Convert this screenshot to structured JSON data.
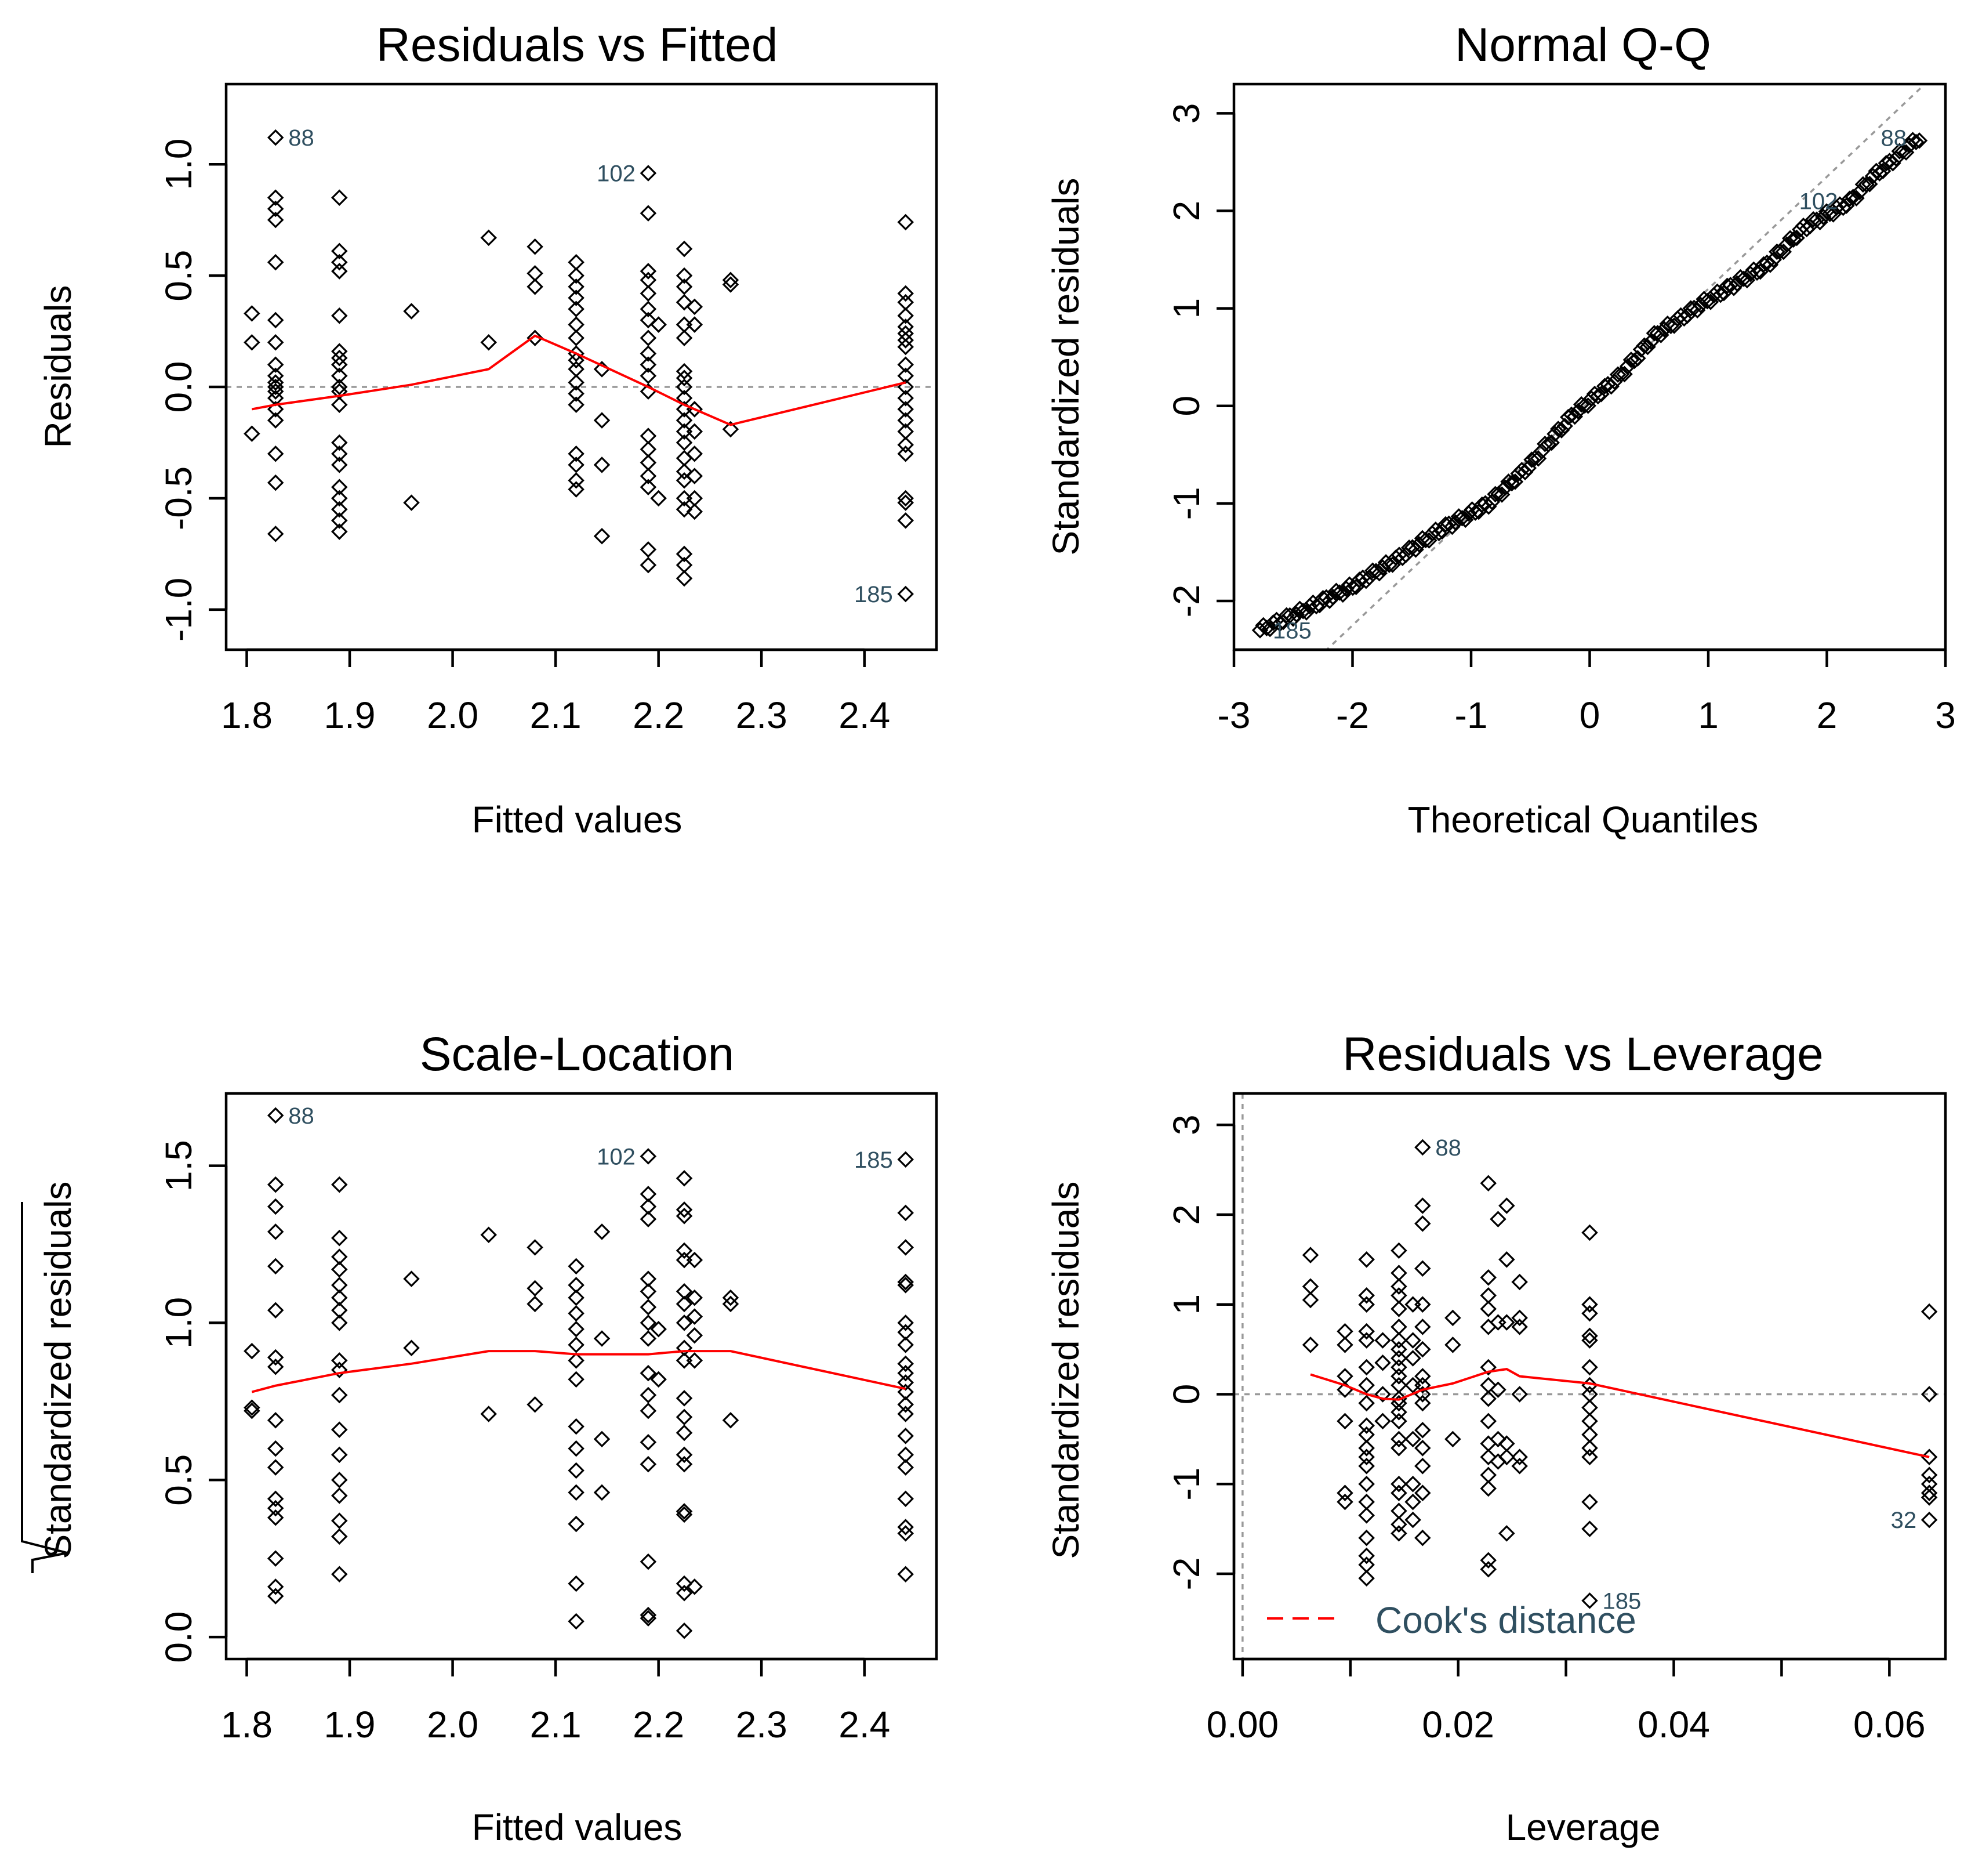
{
  "chart_data": [
    {
      "id": "rvf",
      "type": "scatter",
      "title": "Residuals vs Fitted",
      "xlabel": "Fitted values",
      "ylabel": "Residuals",
      "xlim": [
        1.78,
        2.47
      ],
      "ylim": [
        -1.18,
        1.36
      ],
      "xticks": [
        1.8,
        1.9,
        2.0,
        2.1,
        2.2,
        2.3,
        2.4
      ],
      "xtick_labels": [
        "1.8",
        "1.9",
        "2.0",
        "2.1",
        "2.2",
        "2.3",
        "2.4"
      ],
      "yticks": [
        -1.0,
        -0.5,
        0.0,
        0.5,
        1.0
      ],
      "ytick_labels": [
        "-1.0",
        "-0.5",
        "0.0",
        "0.5",
        "1.0"
      ],
      "reference_line": {
        "kind": "h",
        "value": 0
      },
      "points": [
        {
          "x": 1.805,
          "ys": [
            0.33,
            0.2,
            -0.21
          ]
        },
        {
          "x": 1.828,
          "ys": [
            1.12,
            0.85,
            0.8,
            0.75,
            0.56,
            0.3,
            0.2,
            0.1,
            0.05,
            0.02,
            0.0,
            -0.02,
            -0.05,
            -0.1,
            -0.15,
            -0.3,
            -0.43,
            -0.66
          ]
        },
        {
          "x": 1.89,
          "ys": [
            0.85,
            0.61,
            0.56,
            0.52,
            0.32,
            0.16,
            0.13,
            0.1,
            0.05,
            0.0,
            -0.02,
            -0.08,
            -0.25,
            -0.3,
            -0.35,
            -0.45,
            -0.5,
            -0.55,
            -0.6,
            -0.65
          ]
        },
        {
          "x": 1.96,
          "ys": [
            0.34,
            -0.52
          ]
        },
        {
          "x": 2.035,
          "ys": [
            0.67,
            0.2
          ]
        },
        {
          "x": 2.08,
          "ys": [
            0.63,
            0.51,
            0.45,
            0.22
          ]
        },
        {
          "x": 2.12,
          "ys": [
            0.56,
            0.5,
            0.45,
            0.4,
            0.35,
            0.28,
            0.22,
            0.15,
            0.12,
            0.08,
            0.02,
            -0.03,
            -0.08,
            -0.3,
            -0.35,
            -0.42,
            -0.46
          ]
        },
        {
          "x": 2.145,
          "ys": [
            0.08,
            -0.15,
            -0.35,
            -0.67
          ]
        },
        {
          "x": 2.19,
          "ys": [
            0.96,
            0.78,
            0.52,
            0.48,
            0.42,
            0.35,
            0.3,
            0.22,
            0.15,
            0.1,
            0.05,
            -0.02,
            -0.22,
            -0.28,
            -0.34,
            -0.4,
            -0.45,
            -0.73,
            -0.8
          ]
        },
        {
          "x": 2.2,
          "ys": [
            0.28,
            -0.5
          ]
        },
        {
          "x": 2.225,
          "ys": [
            0.62,
            0.5,
            0.45,
            0.38,
            0.28,
            0.22,
            0.07,
            0.04,
            0.0,
            -0.05,
            -0.1,
            -0.15,
            -0.2,
            -0.25,
            -0.32,
            -0.38,
            -0.42,
            -0.5,
            -0.55,
            -0.75,
            -0.8,
            -0.86
          ]
        },
        {
          "x": 2.235,
          "ys": [
            0.36,
            0.28,
            -0.1,
            -0.2,
            -0.3,
            -0.4,
            -0.5,
            -0.56
          ]
        },
        {
          "x": 2.27,
          "ys": [
            0.48,
            0.46,
            -0.19
          ]
        },
        {
          "x": 2.44,
          "ys": [
            0.74,
            0.42,
            0.38,
            0.32,
            0.27,
            0.24,
            0.21,
            0.18,
            0.1,
            0.05,
            0.0,
            -0.05,
            -0.1,
            -0.15,
            -0.2,
            -0.26,
            -0.3,
            -0.5,
            -0.52,
            -0.6,
            -0.93
          ]
        }
      ],
      "smooth_line": {
        "x": [
          1.805,
          1.828,
          1.89,
          1.96,
          2.035,
          2.08,
          2.12,
          2.19,
          2.225,
          2.27,
          2.44
        ],
        "y": [
          -0.1,
          -0.08,
          -0.04,
          0.01,
          0.08,
          0.23,
          0.15,
          0.0,
          -0.08,
          -0.17,
          0.02
        ]
      },
      "point_labels": [
        {
          "text": "88",
          "x": 1.828,
          "y": 1.12,
          "side": "right"
        },
        {
          "text": "102",
          "x": 2.19,
          "y": 0.96,
          "side": "left"
        },
        {
          "text": "185",
          "x": 2.44,
          "y": -0.93,
          "side": "left"
        }
      ]
    },
    {
      "id": "qq",
      "type": "scatter",
      "title": "Normal Q-Q",
      "xlabel": "Theoretical Quantiles",
      "ylabel": "Standardized residuals",
      "xlim": [
        -3.0,
        3.0
      ],
      "ylim": [
        -2.5,
        3.3
      ],
      "xticks": [
        -3,
        -2,
        -1,
        0,
        1,
        2,
        3
      ],
      "xtick_labels": [
        "-3",
        "-2",
        "-1",
        "0",
        "1",
        "2",
        "3"
      ],
      "yticks": [
        -2,
        -1,
        0,
        1,
        2,
        3
      ],
      "ytick_labels": [
        "-2",
        "-1",
        "0",
        "1",
        "2",
        "3"
      ],
      "reference_line": {
        "kind": "abline",
        "intercept": 0.05,
        "slope": 1.15
      },
      "qq": {
        "x_start": -2.78,
        "x_end": 2.78,
        "n": 200,
        "anchors": [
          [
            -2.78,
            -2.3
          ],
          [
            -2.45,
            -2.12
          ],
          [
            -2.0,
            -1.85
          ],
          [
            -1.6,
            -1.55
          ],
          [
            -1.3,
            -1.3
          ],
          [
            -0.85,
            -1.0
          ],
          [
            -0.5,
            -0.6
          ],
          [
            -0.15,
            -0.1
          ],
          [
            0.25,
            0.3
          ],
          [
            0.55,
            0.72
          ],
          [
            0.95,
            1.05
          ],
          [
            1.5,
            1.45
          ],
          [
            1.8,
            1.82
          ],
          [
            2.2,
            2.1
          ],
          [
            2.4,
            2.36
          ],
          [
            2.78,
            2.75
          ]
        ]
      },
      "point_labels": [
        {
          "text": "88",
          "x": 2.78,
          "y": 2.75,
          "side": "left"
        },
        {
          "text": "102",
          "x": 2.2,
          "y": 2.1,
          "side": "left"
        },
        {
          "text": "185",
          "x": -2.78,
          "y": -2.3,
          "side": "right"
        }
      ]
    },
    {
      "id": "sl",
      "type": "scatter",
      "title": "Scale-Location",
      "xlabel": "Fitted values",
      "ylabel": "Standardized residuals",
      "xlim": [
        1.78,
        2.47
      ],
      "ylim": [
        -0.07,
        1.73
      ],
      "xticks": [
        1.8,
        1.9,
        2.0,
        2.1,
        2.2,
        2.3,
        2.4
      ],
      "xtick_labels": [
        "1.8",
        "1.9",
        "2.0",
        "2.1",
        "2.2",
        "2.3",
        "2.4"
      ],
      "yticks": [
        0.0,
        0.5,
        1.0,
        1.5
      ],
      "ytick_labels": [
        "0.0",
        "0.5",
        "1.0",
        "1.5"
      ],
      "points": [
        {
          "x": 1.805,
          "ys": [
            0.91,
            0.73,
            0.72
          ]
        },
        {
          "x": 1.828,
          "ys": [
            1.66,
            1.44,
            1.37,
            1.29,
            1.18,
            1.04,
            0.89,
            0.86,
            0.69,
            0.6,
            0.54,
            0.44,
            0.41,
            0.38,
            0.25,
            0.16,
            0.13
          ]
        },
        {
          "x": 1.89,
          "ys": [
            1.44,
            1.27,
            1.21,
            1.17,
            1.12,
            1.08,
            1.04,
            1.0,
            0.88,
            0.85,
            0.77,
            0.66,
            0.58,
            0.5,
            0.45,
            0.37,
            0.32,
            0.2
          ]
        },
        {
          "x": 1.96,
          "ys": [
            1.14,
            0.92
          ]
        },
        {
          "x": 2.035,
          "ys": [
            1.28,
            0.71
          ]
        },
        {
          "x": 2.08,
          "ys": [
            1.24,
            1.11,
            1.06,
            0.74
          ]
        },
        {
          "x": 2.12,
          "ys": [
            1.18,
            1.12,
            1.08,
            1.03,
            0.98,
            0.93,
            0.88,
            0.82,
            0.67,
            0.6,
            0.53,
            0.46,
            0.36,
            0.17,
            0.05
          ]
        },
        {
          "x": 2.145,
          "ys": [
            1.29,
            0.95,
            0.63,
            0.46
          ]
        },
        {
          "x": 2.19,
          "ys": [
            1.53,
            1.41,
            1.37,
            1.33,
            1.14,
            1.1,
            1.05,
            1.0,
            0.95,
            0.84,
            0.77,
            0.72,
            0.62,
            0.55,
            0.24,
            0.07,
            0.06
          ]
        },
        {
          "x": 2.2,
          "ys": [
            0.82,
            0.98
          ]
        },
        {
          "x": 2.225,
          "ys": [
            1.46,
            1.36,
            1.34,
            1.23,
            1.2,
            1.1,
            1.06,
            1.0,
            0.92,
            0.88,
            0.76,
            0.7,
            0.65,
            0.58,
            0.55,
            0.4,
            0.39,
            0.17,
            0.14,
            0.02
          ]
        },
        {
          "x": 2.235,
          "ys": [
            1.2,
            1.08,
            1.02,
            0.96,
            0.88,
            0.16
          ]
        },
        {
          "x": 2.27,
          "ys": [
            1.08,
            1.06,
            0.69
          ]
        },
        {
          "x": 2.44,
          "ys": [
            1.52,
            1.35,
            1.24,
            1.13,
            1.12,
            1.0,
            0.97,
            0.93,
            0.87,
            0.84,
            0.81,
            0.78,
            0.74,
            0.71,
            0.64,
            0.58,
            0.54,
            0.44,
            0.35,
            0.33,
            0.2
          ]
        }
      ],
      "smooth_line": {
        "x": [
          1.805,
          1.828,
          1.89,
          1.96,
          2.035,
          2.08,
          2.12,
          2.19,
          2.225,
          2.27,
          2.44
        ],
        "y": [
          0.78,
          0.8,
          0.84,
          0.87,
          0.91,
          0.91,
          0.9,
          0.9,
          0.91,
          0.91,
          0.79
        ]
      },
      "point_labels": [
        {
          "text": "88",
          "x": 1.828,
          "y": 1.66,
          "side": "right"
        },
        {
          "text": "102",
          "x": 2.19,
          "y": 1.53,
          "side": "left"
        },
        {
          "text": "185",
          "x": 2.44,
          "y": 1.52,
          "side": "left"
        }
      ]
    },
    {
      "id": "rvl",
      "type": "scatter",
      "title": "Residuals vs Leverage",
      "xlabel": "Leverage",
      "ylabel": "Standardized residuals",
      "xlim": [
        -0.0008,
        0.0652
      ],
      "ylim": [
        -2.95,
        3.35
      ],
      "xticks": [
        0.0,
        0.01,
        0.02,
        0.03,
        0.04,
        0.05,
        0.06
      ],
      "xtick_labels": [
        "0.00",
        "",
        "0.02",
        "",
        "0.04",
        "",
        "0.06"
      ],
      "yticks": [
        -2,
        -1,
        0,
        1,
        2,
        3
      ],
      "ytick_labels": [
        "-2",
        "-1",
        "0",
        "1",
        "2",
        "3"
      ],
      "reference_line": {
        "kind": "h",
        "value": 0
      },
      "reference_line_v": 0,
      "points": [
        {
          "x": 0.0063,
          "ys": [
            1.55,
            1.2,
            1.05,
            0.55
          ]
        },
        {
          "x": 0.0095,
          "ys": [
            0.7,
            0.55,
            0.2,
            0.05,
            -0.3,
            -1.1,
            -1.2
          ]
        },
        {
          "x": 0.0115,
          "ys": [
            1.5,
            1.1,
            1.0,
            0.7,
            0.6,
            0.3,
            0.1,
            -0.1,
            -0.35,
            -0.45,
            -0.6,
            -0.7,
            -0.8,
            -1.0,
            -1.2,
            -1.35,
            -1.6,
            -1.8,
            -1.9,
            -2.05
          ]
        },
        {
          "x": 0.013,
          "ys": [
            0.6,
            0.35,
            0.0,
            -0.3
          ]
        },
        {
          "x": 0.0145,
          "ys": [
            1.6,
            1.35,
            1.2,
            1.1,
            0.95,
            0.75,
            0.6,
            0.5,
            0.4,
            0.3,
            0.2,
            0.1,
            -0.05,
            -0.1,
            -0.2,
            -0.3,
            -0.5,
            -0.6,
            -1.0,
            -1.1,
            -1.3,
            -1.45,
            -1.55
          ]
        },
        {
          "x": 0.0158,
          "ys": [
            1.0,
            0.6,
            0.4,
            0.1,
            -0.5,
            -1.0,
            -1.2,
            -1.4
          ]
        },
        {
          "x": 0.0167,
          "ys": [
            2.75,
            2.1,
            1.9,
            1.4,
            1.0,
            0.75,
            0.5,
            0.2,
            0.1,
            0.0,
            -0.1,
            -0.4,
            -0.6,
            -0.8,
            -1.1,
            -1.6
          ]
        },
        {
          "x": 0.0195,
          "ys": [
            0.85,
            0.55,
            -0.5
          ]
        },
        {
          "x": 0.0228,
          "ys": [
            2.35,
            1.3,
            1.1,
            0.95,
            0.75,
            0.3,
            0.1,
            -0.05,
            -0.3,
            -0.55,
            -0.7,
            -0.9,
            -1.05,
            -1.85,
            -1.95
          ]
        },
        {
          "x": 0.0237,
          "ys": [
            1.95,
            0.8,
            0.05,
            -0.5,
            -0.75
          ]
        },
        {
          "x": 0.0245,
          "ys": [
            2.1,
            1.5,
            0.8,
            -0.55,
            -0.7,
            -1.55
          ]
        },
        {
          "x": 0.0257,
          "ys": [
            1.25,
            0.85,
            0.75,
            0.0,
            -0.7,
            -0.8
          ]
        },
        {
          "x": 0.0322,
          "ys": [
            1.8,
            1.0,
            0.9,
            0.65,
            0.6,
            0.3,
            0.1,
            0.0,
            -0.15,
            -0.3,
            -0.45,
            -0.6,
            -0.7,
            -1.2,
            -1.5,
            -2.3
          ]
        },
        {
          "x": 0.0637,
          "ys": [
            0.92,
            0.0,
            -0.7,
            -0.9,
            -1.0,
            -1.1,
            -1.15,
            -1.4
          ]
        }
      ],
      "smooth_line": {
        "x": [
          0.0063,
          0.0095,
          0.0115,
          0.013,
          0.0145,
          0.0167,
          0.0195,
          0.0228,
          0.0245,
          0.0257,
          0.0322,
          0.0637
        ],
        "y": [
          0.22,
          0.1,
          0.0,
          -0.05,
          -0.06,
          0.05,
          0.12,
          0.25,
          0.28,
          0.2,
          0.12,
          -0.7
        ]
      },
      "point_labels": [
        {
          "text": "88",
          "x": 0.0167,
          "y": 2.75,
          "side": "right"
        },
        {
          "text": "185",
          "x": 0.0322,
          "y": -2.3,
          "side": "right"
        },
        {
          "text": "32",
          "x": 0.0637,
          "y": -1.4,
          "side": "left"
        }
      ],
      "legend": {
        "label": "Cook's distance",
        "color": "#ff0000",
        "position": "bottom-left"
      }
    }
  ]
}
